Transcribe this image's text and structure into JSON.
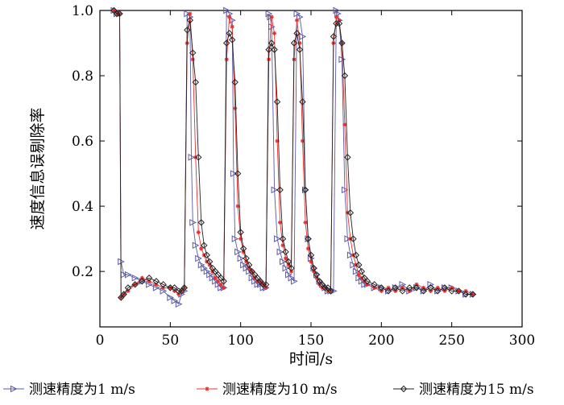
{
  "chart_data": {
    "type": "line",
    "title": "",
    "xlabel": "时间/s",
    "ylabel": "速度信息误剔除率",
    "xlim": [
      0,
      300
    ],
    "ylim": [
      0.03,
      1.0
    ],
    "xticks": [
      0,
      50,
      100,
      150,
      200,
      250,
      300
    ],
    "yticks": [
      0.2,
      0.4,
      0.6,
      0.8,
      1.0
    ],
    "xtick_labels": [
      "0",
      "50",
      "100",
      "150",
      "200",
      "250",
      "300"
    ],
    "ytick_labels": [
      "0.2",
      "0.4",
      "0.6",
      "0.8",
      "1.0"
    ],
    "legend_position": "bottom",
    "series": [
      {
        "name": "测速精度为1 m/s",
        "color": "#5a5aa8",
        "marker": "triangle-right",
        "x": [
          10,
          12,
          14,
          15,
          17,
          20,
          25,
          30,
          35,
          40,
          45,
          50,
          53,
          56,
          58,
          60,
          62,
          64,
          65,
          66,
          68,
          70,
          72,
          74,
          76,
          78,
          80,
          82,
          84,
          86,
          88,
          90,
          92,
          94,
          95,
          96,
          98,
          100,
          102,
          104,
          106,
          108,
          110,
          112,
          114,
          116,
          118,
          120,
          121,
          122,
          124,
          126,
          128,
          130,
          132,
          134,
          136,
          138,
          140,
          142,
          144,
          146,
          148,
          150,
          152,
          154,
          156,
          158,
          160,
          162,
          164,
          166,
          168,
          169,
          170,
          172,
          174,
          176,
          178,
          180,
          182,
          184,
          186,
          188,
          190,
          195,
          200,
          205,
          210,
          215,
          220,
          225,
          230,
          235,
          240,
          245,
          250,
          255,
          260,
          265
        ],
        "y": [
          1.0,
          0.99,
          0.99,
          0.23,
          0.19,
          0.19,
          0.18,
          0.17,
          0.16,
          0.15,
          0.14,
          0.12,
          0.11,
          0.1,
          0.13,
          0.14,
          0.99,
          0.98,
          0.55,
          0.35,
          0.28,
          0.24,
          0.22,
          0.21,
          0.2,
          0.19,
          0.18,
          0.17,
          0.16,
          0.15,
          0.15,
          1.0,
          0.99,
          0.97,
          0.5,
          0.3,
          0.26,
          0.24,
          0.22,
          0.21,
          0.2,
          0.18,
          0.17,
          0.16,
          0.16,
          0.15,
          0.15,
          0.99,
          0.98,
          0.95,
          0.45,
          0.3,
          0.26,
          0.23,
          0.21,
          0.19,
          0.18,
          0.17,
          0.99,
          0.98,
          0.92,
          0.45,
          0.3,
          0.24,
          0.21,
          0.19,
          0.17,
          0.16,
          0.15,
          0.14,
          0.14,
          0.14,
          1.0,
          0.99,
          0.97,
          0.85,
          0.45,
          0.3,
          0.25,
          0.22,
          0.2,
          0.18,
          0.17,
          0.16,
          0.16,
          0.15,
          0.15,
          0.14,
          0.15,
          0.16,
          0.14,
          0.15,
          0.14,
          0.16,
          0.14,
          0.15,
          0.15,
          0.14,
          0.13,
          0.13
        ]
      },
      {
        "name": "测速精度为10 m/s",
        "color": "#e83030",
        "marker": "star",
        "x": [
          10,
          12,
          14,
          15,
          17,
          20,
          25,
          30,
          35,
          40,
          45,
          50,
          53,
          56,
          58,
          60,
          62,
          64,
          66,
          68,
          70,
          72,
          74,
          76,
          78,
          80,
          82,
          84,
          86,
          88,
          90,
          92,
          94,
          96,
          98,
          100,
          102,
          104,
          106,
          108,
          110,
          112,
          114,
          116,
          118,
          120,
          122,
          124,
          126,
          128,
          130,
          132,
          134,
          136,
          138,
          140,
          142,
          144,
          146,
          148,
          150,
          152,
          154,
          156,
          158,
          160,
          162,
          164,
          166,
          168,
          170,
          172,
          174,
          176,
          178,
          180,
          182,
          184,
          186,
          188,
          190,
          195,
          200,
          205,
          210,
          215,
          220,
          225,
          230,
          235,
          240,
          245,
          250,
          255,
          260,
          265
        ],
        "y": [
          1.0,
          0.99,
          0.99,
          0.12,
          0.13,
          0.14,
          0.16,
          0.18,
          0.17,
          0.16,
          0.15,
          0.15,
          0.14,
          0.13,
          0.14,
          0.15,
          0.9,
          0.99,
          0.85,
          0.55,
          0.32,
          0.27,
          0.25,
          0.23,
          0.22,
          0.2,
          0.18,
          0.17,
          0.16,
          0.15,
          0.85,
          0.98,
          0.95,
          0.7,
          0.4,
          0.3,
          0.26,
          0.23,
          0.21,
          0.2,
          0.18,
          0.17,
          0.17,
          0.16,
          0.15,
          0.85,
          0.98,
          0.93,
          0.6,
          0.35,
          0.28,
          0.24,
          0.22,
          0.2,
          0.85,
          0.97,
          0.9,
          0.6,
          0.35,
          0.27,
          0.23,
          0.2,
          0.18,
          0.16,
          0.15,
          0.15,
          0.14,
          0.14,
          0.9,
          0.98,
          0.97,
          0.9,
          0.65,
          0.38,
          0.3,
          0.25,
          0.22,
          0.19,
          0.18,
          0.17,
          0.16,
          0.15,
          0.14,
          0.15,
          0.14,
          0.15,
          0.14,
          0.16,
          0.15,
          0.14,
          0.15,
          0.14,
          0.15,
          0.14,
          0.14,
          0.13
        ]
      },
      {
        "name": "测速精度为15 m/s",
        "color": "#222222",
        "marker": "diamond",
        "x": [
          10,
          12,
          14,
          15,
          17,
          20,
          25,
          30,
          35,
          40,
          45,
          50,
          53,
          56,
          58,
          60,
          62,
          64,
          66,
          68,
          70,
          72,
          74,
          76,
          78,
          80,
          82,
          84,
          86,
          88,
          90,
          92,
          94,
          96,
          98,
          100,
          102,
          104,
          106,
          108,
          110,
          112,
          114,
          116,
          118,
          120,
          122,
          124,
          126,
          128,
          130,
          132,
          134,
          136,
          138,
          140,
          142,
          144,
          146,
          148,
          150,
          152,
          154,
          156,
          158,
          160,
          162,
          164,
          166,
          168,
          170,
          172,
          174,
          176,
          178,
          180,
          182,
          184,
          186,
          188,
          190,
          195,
          200,
          205,
          210,
          215,
          220,
          225,
          230,
          235,
          240,
          245,
          250,
          255,
          260,
          265
        ],
        "y": [
          1.0,
          0.99,
          0.99,
          0.12,
          0.13,
          0.15,
          0.16,
          0.17,
          0.18,
          0.17,
          0.16,
          0.15,
          0.15,
          0.14,
          0.14,
          0.15,
          0.94,
          0.97,
          0.87,
          0.78,
          0.55,
          0.35,
          0.28,
          0.25,
          0.23,
          0.21,
          0.2,
          0.19,
          0.18,
          0.17,
          0.9,
          0.93,
          0.91,
          0.78,
          0.5,
          0.32,
          0.27,
          0.24,
          0.22,
          0.2,
          0.19,
          0.18,
          0.17,
          0.16,
          0.16,
          0.88,
          0.9,
          0.88,
          0.72,
          0.45,
          0.3,
          0.26,
          0.23,
          0.21,
          0.9,
          0.93,
          0.88,
          0.72,
          0.45,
          0.3,
          0.25,
          0.21,
          0.19,
          0.17,
          0.16,
          0.15,
          0.15,
          0.14,
          0.92,
          0.96,
          0.96,
          0.9,
          0.8,
          0.55,
          0.38,
          0.3,
          0.25,
          0.22,
          0.2,
          0.18,
          0.17,
          0.16,
          0.15,
          0.14,
          0.15,
          0.14,
          0.15,
          0.15,
          0.14,
          0.15,
          0.14,
          0.15,
          0.14,
          0.14,
          0.13,
          0.13
        ]
      }
    ]
  }
}
